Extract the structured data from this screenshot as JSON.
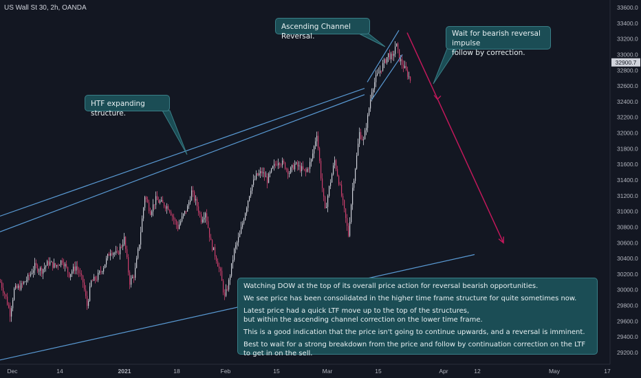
{
  "header": {
    "symbol": "US Wall St 30, 2h, OANDA"
  },
  "annotations": {
    "htf": "HTF expanding structure.",
    "asc": "Ascending Channel Reversal.",
    "wait_l1": "Wait for bearish reversal impulse",
    "wait_l2": "follow by correction.",
    "note_p1": "Watching DOW at the top of its overall price action for reversal bearish opportunities.",
    "note_p2": "We see price has been consolidated in the higher time frame structure for quite sometimes now.",
    "note_p3a": "Latest price had a quick LTF move up to the top of the structures,",
    "note_p3b": "but within the ascending channel correction on the lower time frame.",
    "note_p4": "This is a good indication that the price isn't going to continue upwards, and a reversal is imminent.",
    "note_p5": "Best to wait for a strong breakdown from the price and follow by continuation correction on the LTF to get in on the sell."
  },
  "colors": {
    "background": "#131722",
    "bull": "#d1d4dc",
    "bear": "#d0406e",
    "trendline": "#5a9bd5",
    "arrow": "#c2185b",
    "callout": "#1b4d55",
    "price_label": "#d1d4dc"
  },
  "chart_data": {
    "type": "candlestick",
    "yaxis": {
      "side": "right",
      "range": [
        29080,
        33700
      ],
      "ticks": [
        "33600.0",
        "33400.0",
        "33200.0",
        "33000.0",
        "32800.0",
        "32600.0",
        "32400.0",
        "32200.0",
        "32000.0",
        "31800.0",
        "31600.0",
        "31400.0",
        "31200.0",
        "31000.0",
        "30800.0",
        "30600.0",
        "30400.0",
        "30200.0",
        "30000.0",
        "29800.0",
        "29600.0",
        "29400.0",
        "29200.0"
      ]
    },
    "xaxis": {
      "ticks": [
        "Dec",
        "14",
        "2021",
        "18",
        "Feb",
        "15",
        "Mar",
        "15",
        "Apr",
        "12",
        "May",
        "17"
      ]
    },
    "current_price": {
      "value": 32900.7,
      "label": "32900.7"
    },
    "price_path": [
      [
        0,
        30100
      ],
      [
        8,
        29900
      ],
      [
        14,
        29700
      ],
      [
        20,
        30000
      ],
      [
        30,
        30050
      ],
      [
        40,
        30150
      ],
      [
        50,
        30300
      ],
      [
        60,
        30250
      ],
      [
        70,
        30350
      ],
      [
        80,
        30300
      ],
      [
        90,
        30380
      ],
      [
        100,
        30200
      ],
      [
        110,
        30300
      ],
      [
        120,
        30100
      ],
      [
        126,
        29800
      ],
      [
        132,
        30100
      ],
      [
        140,
        30150
      ],
      [
        150,
        30300
      ],
      [
        160,
        30500
      ],
      [
        170,
        30450
      ],
      [
        180,
        30650
      ],
      [
        188,
        30100
      ],
      [
        195,
        30200
      ],
      [
        202,
        30600
      ],
      [
        210,
        31200
      ],
      [
        218,
        31000
      ],
      [
        226,
        31150
      ],
      [
        235,
        31100
      ],
      [
        245,
        31050
      ],
      [
        252,
        30900
      ],
      [
        258,
        30800
      ],
      [
        266,
        30950
      ],
      [
        272,
        31050
      ],
      [
        278,
        31250
      ],
      [
        285,
        31100
      ],
      [
        292,
        30900
      ],
      [
        298,
        31000
      ],
      [
        306,
        30600
      ],
      [
        314,
        30400
      ],
      [
        320,
        30200
      ],
      [
        326,
        29900
      ],
      [
        332,
        30100
      ],
      [
        340,
        30500
      ],
      [
        348,
        30700
      ],
      [
        356,
        31000
      ],
      [
        364,
        31300
      ],
      [
        372,
        31450
      ],
      [
        380,
        31500
      ],
      [
        388,
        31400
      ],
      [
        396,
        31550
      ],
      [
        404,
        31650
      ],
      [
        412,
        31600
      ],
      [
        420,
        31500
      ],
      [
        428,
        31600
      ],
      [
        436,
        31550
      ],
      [
        444,
        31500
      ],
      [
        452,
        31650
      ],
      [
        460,
        32000
      ],
      [
        466,
        31450
      ],
      [
        472,
        31000
      ],
      [
        478,
        31300
      ],
      [
        486,
        31650
      ],
      [
        494,
        31300
      ],
      [
        500,
        31000
      ],
      [
        506,
        30700
      ],
      [
        512,
        31300
      ],
      [
        518,
        31700
      ],
      [
        522,
        32000
      ],
      [
        528,
        31900
      ],
      [
        534,
        32200
      ],
      [
        540,
        32550
      ],
      [
        546,
        32700
      ],
      [
        552,
        32800
      ],
      [
        558,
        32900
      ],
      [
        564,
        33000
      ],
      [
        570,
        32950
      ],
      [
        575,
        33150
      ],
      [
        580,
        32950
      ],
      [
        586,
        32850
      ],
      [
        592,
        32750
      ],
      [
        596,
        32680
      ]
    ],
    "trendlines": [
      {
        "name": "htf-upper",
        "from": [
          0,
          30940
        ],
        "to": [
          530,
          32570
        ]
      },
      {
        "name": "htf-lower",
        "from": [
          0,
          30740
        ],
        "to": [
          530,
          32490
        ]
      },
      {
        "name": "htf-base",
        "from": [
          0,
          29105
        ],
        "to": [
          690,
          30450
        ]
      },
      {
        "name": "asc-channel-upper",
        "from": [
          534,
          32650
        ],
        "to": [
          580,
          33310
        ]
      },
      {
        "name": "asc-channel-lower",
        "from": [
          540,
          32420
        ],
        "to": [
          585,
          33000
        ]
      }
    ],
    "arrow": {
      "from": [
        592,
        33280
      ],
      "to": [
        732,
        30600
      ]
    },
    "notes": "x values are chart column indices along the time axis"
  }
}
